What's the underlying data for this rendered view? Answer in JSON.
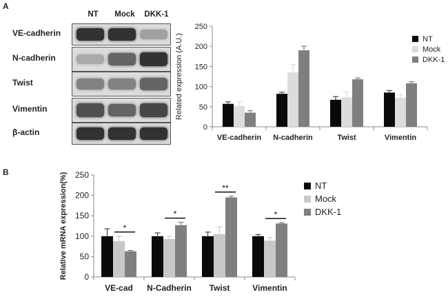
{
  "panel_a": {
    "label": "A"
  },
  "panel_b": {
    "label": "B"
  },
  "blot": {
    "lanes": [
      "NT",
      "Mock",
      "DKK-1"
    ],
    "rows": [
      {
        "protein": "VE-cadherin",
        "intensity": [
          0.85,
          0.85,
          0.3
        ]
      },
      {
        "protein": "N-cadherin",
        "intensity": [
          0.25,
          0.6,
          0.85
        ]
      },
      {
        "protein": "Twist",
        "intensity": [
          0.45,
          0.45,
          0.6
        ]
      },
      {
        "protein": "Vimentin",
        "intensity": [
          0.7,
          0.6,
          0.75
        ]
      },
      {
        "protein": "β-actin",
        "intensity": [
          0.85,
          0.85,
          0.85
        ]
      }
    ]
  },
  "chart_data": [
    {
      "type": "bar",
      "ylabel": "Related expression (A.U.)",
      "ylim": [
        0,
        250
      ],
      "yticks": [
        0,
        50,
        100,
        150,
        200,
        250
      ],
      "categories": [
        "VE-cadherin",
        "N-cadherin",
        "Twist",
        "Vimentin"
      ],
      "series": [
        {
          "name": "NT",
          "color": "#0a0a0a",
          "values": [
            57,
            82,
            67,
            85
          ],
          "errors": [
            5,
            4,
            8,
            5
          ]
        },
        {
          "name": "Mock",
          "color": "#dcdcdc",
          "values": [
            52,
            135,
            73,
            72
          ],
          "errors": [
            10,
            20,
            13,
            7
          ]
        },
        {
          "name": "DKK-1",
          "color": "#7f7f7f",
          "values": [
            35,
            190,
            118,
            108
          ],
          "errors": [
            5,
            10,
            3,
            4
          ]
        }
      ],
      "legend_position": "top-right",
      "grid": false
    },
    {
      "type": "bar",
      "ylabel": "Relative mRNA expression(%)",
      "ylim": [
        0,
        250
      ],
      "yticks": [
        0,
        50,
        100,
        150,
        200,
        250
      ],
      "categories": [
        "VE-cad",
        "N-Cadherin",
        "Twist",
        "Vimentin"
      ],
      "series": [
        {
          "name": "NT",
          "color": "#0a0a0a",
          "values": [
            100,
            100,
            100,
            100
          ],
          "errors": [
            18,
            8,
            10,
            4
          ]
        },
        {
          "name": "Mock",
          "color": "#c8c8c8",
          "values": [
            88,
            93,
            105,
            89
          ],
          "errors": [
            12,
            7,
            18,
            8
          ]
        },
        {
          "name": "DKK-1",
          "color": "#7f7f7f",
          "values": [
            63,
            127,
            195,
            131
          ],
          "errors": [
            2,
            7,
            3,
            2
          ]
        }
      ],
      "annotations": [
        "*",
        "*",
        "**",
        "*"
      ],
      "legend_position": "right",
      "grid": false
    }
  ]
}
